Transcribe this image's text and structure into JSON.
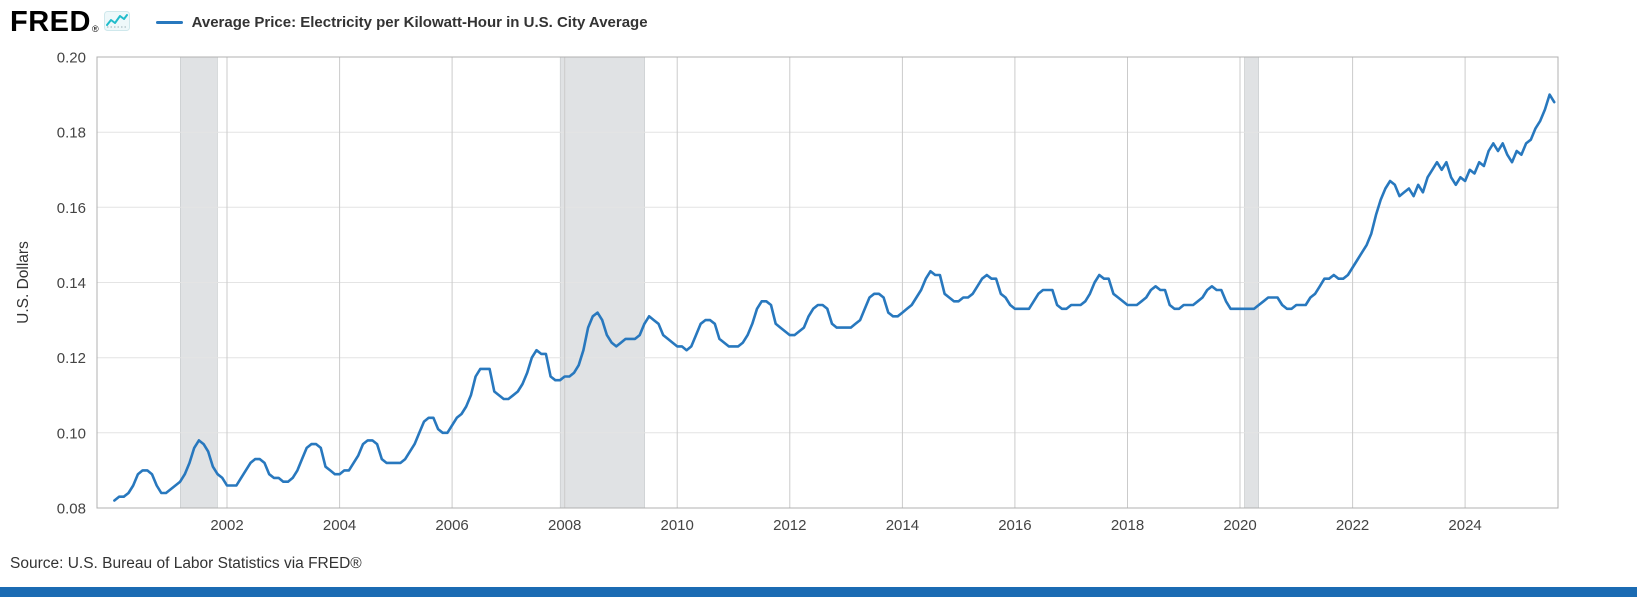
{
  "header": {
    "logo_text": "FRED",
    "logo_registered": "®",
    "legend_label": "Average Price: Electricity per Kilowatt-Hour in U.S. City Average"
  },
  "footer": {
    "source": "Source: U.S. Bureau of Labor Statistics via FRED®"
  },
  "colors": {
    "line": "#2878BE",
    "recession_band": "#E0E2E4",
    "recession_edge": "#C4C7C9",
    "grid_horizontal": "#E4E4E4",
    "grid_vertical": "#CBCBCB",
    "frame": "#B0B0B0",
    "axis_text": "#444444",
    "axis_title_text": "#333333",
    "accent_bar": "#1B6BB3",
    "logo_teal": "#21BCCB"
  },
  "chart_data": {
    "type": "line",
    "title": "Average Price: Electricity per Kilowatt-Hour in U.S. City Average",
    "ylabel": "U.S. Dollars",
    "xlabel": "",
    "legend_position": "top",
    "grid": true,
    "frequency": "monthly",
    "x_start": 2000,
    "xlim": [
      1999.69,
      2025.65
    ],
    "ylim": [
      0.08,
      0.2
    ],
    "y_ticks": [
      0.08,
      0.1,
      0.12,
      0.14,
      0.16,
      0.18,
      0.2
    ],
    "x_ticks": [
      2002,
      2004,
      2006,
      2008,
      2010,
      2012,
      2014,
      2016,
      2018,
      2020,
      2022,
      2024
    ],
    "recessions": [
      [
        2001.17,
        2001.83
      ],
      [
        2007.92,
        2009.42
      ],
      [
        2020.08,
        2020.33
      ]
    ],
    "values": [
      0.082,
      0.083,
      0.083,
      0.084,
      0.086,
      0.089,
      0.09,
      0.09,
      0.089,
      0.086,
      0.084,
      0.084,
      0.085,
      0.086,
      0.087,
      0.089,
      0.092,
      0.096,
      0.098,
      0.097,
      0.095,
      0.091,
      0.089,
      0.088,
      0.086,
      0.086,
      0.086,
      0.088,
      0.09,
      0.092,
      0.093,
      0.093,
      0.092,
      0.089,
      0.088,
      0.088,
      0.087,
      0.087,
      0.088,
      0.09,
      0.093,
      0.096,
      0.097,
      0.097,
      0.096,
      0.091,
      0.09,
      0.089,
      0.089,
      0.09,
      0.09,
      0.092,
      0.094,
      0.097,
      0.098,
      0.098,
      0.097,
      0.093,
      0.092,
      0.092,
      0.092,
      0.092,
      0.093,
      0.095,
      0.097,
      0.1,
      0.103,
      0.104,
      0.104,
      0.101,
      0.1,
      0.1,
      0.102,
      0.104,
      0.105,
      0.107,
      0.11,
      0.115,
      0.117,
      0.117,
      0.117,
      0.111,
      0.11,
      0.109,
      0.109,
      0.11,
      0.111,
      0.113,
      0.116,
      0.12,
      0.122,
      0.121,
      0.121,
      0.115,
      0.114,
      0.114,
      0.115,
      0.115,
      0.116,
      0.118,
      0.122,
      0.128,
      0.131,
      0.132,
      0.13,
      0.126,
      0.124,
      0.123,
      0.124,
      0.125,
      0.125,
      0.125,
      0.126,
      0.129,
      0.131,
      0.13,
      0.129,
      0.126,
      0.125,
      0.124,
      0.123,
      0.123,
      0.122,
      0.123,
      0.126,
      0.129,
      0.13,
      0.13,
      0.129,
      0.125,
      0.124,
      0.123,
      0.123,
      0.123,
      0.124,
      0.126,
      0.129,
      0.133,
      0.135,
      0.135,
      0.134,
      0.129,
      0.128,
      0.127,
      0.126,
      0.126,
      0.127,
      0.128,
      0.131,
      0.133,
      0.134,
      0.134,
      0.133,
      0.129,
      0.128,
      0.128,
      0.128,
      0.128,
      0.129,
      0.13,
      0.133,
      0.136,
      0.137,
      0.137,
      0.136,
      0.132,
      0.131,
      0.131,
      0.132,
      0.133,
      0.134,
      0.136,
      0.138,
      0.141,
      0.143,
      0.142,
      0.142,
      0.137,
      0.136,
      0.135,
      0.135,
      0.136,
      0.136,
      0.137,
      0.139,
      0.141,
      0.142,
      0.141,
      0.141,
      0.137,
      0.136,
      0.134,
      0.133,
      0.133,
      0.133,
      0.133,
      0.135,
      0.137,
      0.138,
      0.138,
      0.138,
      0.134,
      0.133,
      0.133,
      0.134,
      0.134,
      0.134,
      0.135,
      0.137,
      0.14,
      0.142,
      0.141,
      0.141,
      0.137,
      0.136,
      0.135,
      0.134,
      0.134,
      0.134,
      0.135,
      0.136,
      0.138,
      0.139,
      0.138,
      0.138,
      0.134,
      0.133,
      0.133,
      0.134,
      0.134,
      0.134,
      0.135,
      0.136,
      0.138,
      0.139,
      0.138,
      0.138,
      0.135,
      0.133,
      0.133,
      0.133,
      0.133,
      0.133,
      0.133,
      0.134,
      0.135,
      0.136,
      0.136,
      0.136,
      0.134,
      0.133,
      0.133,
      0.134,
      0.134,
      0.134,
      0.136,
      0.137,
      0.139,
      0.141,
      0.141,
      0.142,
      0.141,
      0.141,
      0.142,
      0.144,
      0.146,
      0.148,
      0.15,
      0.153,
      0.158,
      0.162,
      0.165,
      0.167,
      0.166,
      0.163,
      0.164,
      0.165,
      0.163,
      0.166,
      0.164,
      0.168,
      0.17,
      0.172,
      0.17,
      0.172,
      0.168,
      0.166,
      0.168,
      0.167,
      0.17,
      0.169,
      0.172,
      0.171,
      0.175,
      0.177,
      0.175,
      0.177,
      0.174,
      0.172,
      0.175,
      0.174,
      0.177,
      0.178,
      0.181,
      0.183,
      0.186,
      0.19,
      0.188
    ]
  }
}
